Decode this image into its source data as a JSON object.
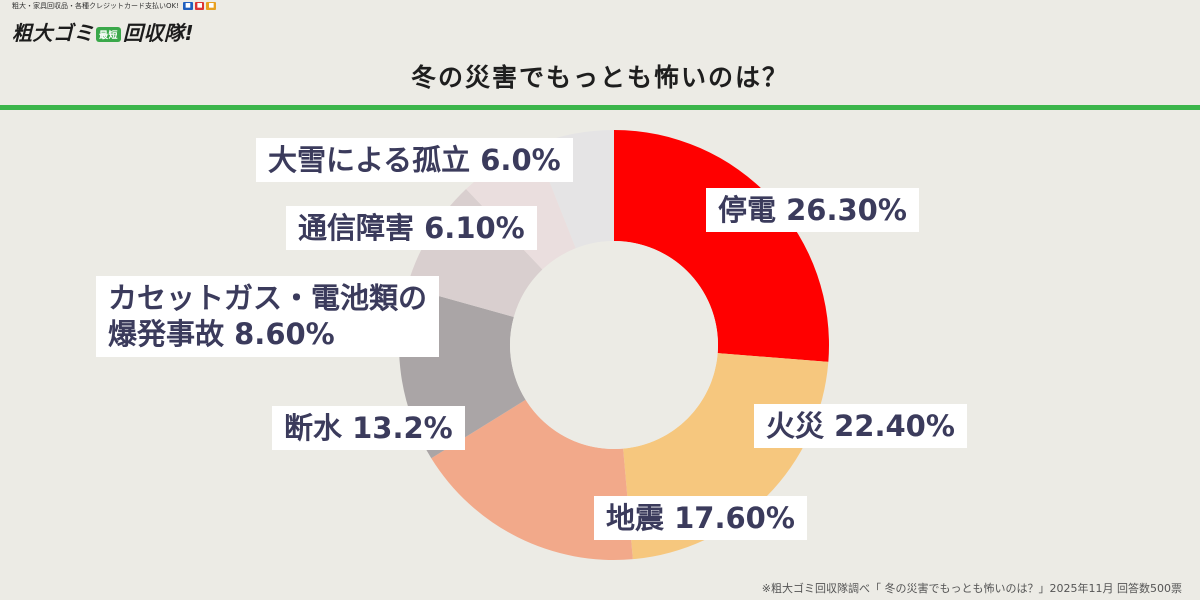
{
  "logo": {
    "tagline": "粗大・家具回収品・各種クレジットカード支払いOK!",
    "badge": "最短",
    "name_before": "粗大ゴミ",
    "name_after": "回収隊!"
  },
  "source_note": "※粗大ゴミ回収隊調べ「 冬の災害でもっとも怖いのは？」2025年11月 回答数500票",
  "colors": {
    "accent_green": "#3bb54a"
  },
  "chart_data": {
    "type": "pie",
    "donut": true,
    "title": "冬の災害でもっとも怖いのは？",
    "slices": [
      {
        "label": "停電",
        "value_text": "26.30%",
        "value": 26.3,
        "color": "#ff0000"
      },
      {
        "label": "火災",
        "value_text": "22.40%",
        "value": 22.4,
        "color": "#f6c77e"
      },
      {
        "label": "地震",
        "value_text": "17.60%",
        "value": 17.6,
        "color": "#f2a98a"
      },
      {
        "label": "断水",
        "value_text": "13.2%",
        "value": 13.2,
        "color": "#aaa5a6"
      },
      {
        "label": "カセットガス・電池類の爆発事故",
        "label_line1": "カセットガス・電池類の",
        "label_line2": "爆発事故",
        "value_text": "8.60%",
        "value": 8.6,
        "color": "#d9cfcf"
      },
      {
        "label": "通信障害",
        "value_text": "6.10%",
        "value": 6.1,
        "color": "#eadede"
      },
      {
        "label": "大雪による孤立",
        "value_text": "6.0%",
        "value": 6.0,
        "color": "#e5e4e5"
      }
    ],
    "legend": "none"
  }
}
